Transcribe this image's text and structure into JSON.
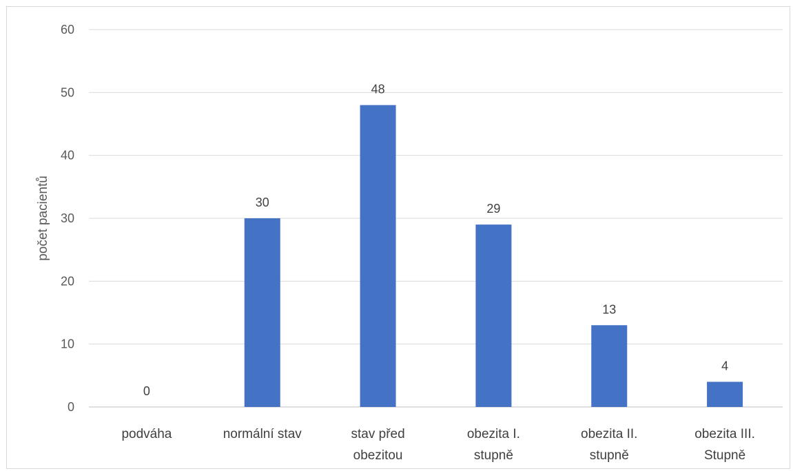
{
  "chart_data": {
    "type": "bar",
    "title": "",
    "xlabel": "",
    "ylabel": "počet pacientů",
    "ylim": [
      0,
      60
    ],
    "yticks": [
      0,
      10,
      20,
      30,
      40,
      50,
      60
    ],
    "grid": true,
    "legend": "none",
    "categories": [
      [
        "podváha"
      ],
      [
        "normální stav"
      ],
      [
        "stav před",
        "obezitou"
      ],
      [
        "obezita I.",
        "stupně"
      ],
      [
        "obezita II.",
        "stupně"
      ],
      [
        "obezita III.",
        "Stupně"
      ]
    ],
    "series": [
      {
        "values": [
          0,
          30,
          48,
          29,
          13,
          4
        ]
      }
    ],
    "colors": {
      "bar": "#4472c4",
      "grid": "#d9d9d9",
      "axis": "#bfbfbf"
    }
  }
}
